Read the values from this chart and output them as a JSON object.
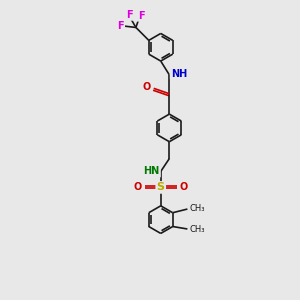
{
  "bg_color": "#e8e8e8",
  "bond_color": "#1a1a1a",
  "lw": 1.2,
  "atom_colors": {
    "O": "#cc0000",
    "N": "#0000cc",
    "N2": "#007700",
    "S": "#bbaa00",
    "F": "#dd00dd",
    "C": "#1a1a1a"
  },
  "figsize": [
    3.0,
    3.0
  ],
  "dpi": 100,
  "xlim": [
    -2.5,
    2.5
  ],
  "ylim": [
    -4.8,
    4.8
  ]
}
